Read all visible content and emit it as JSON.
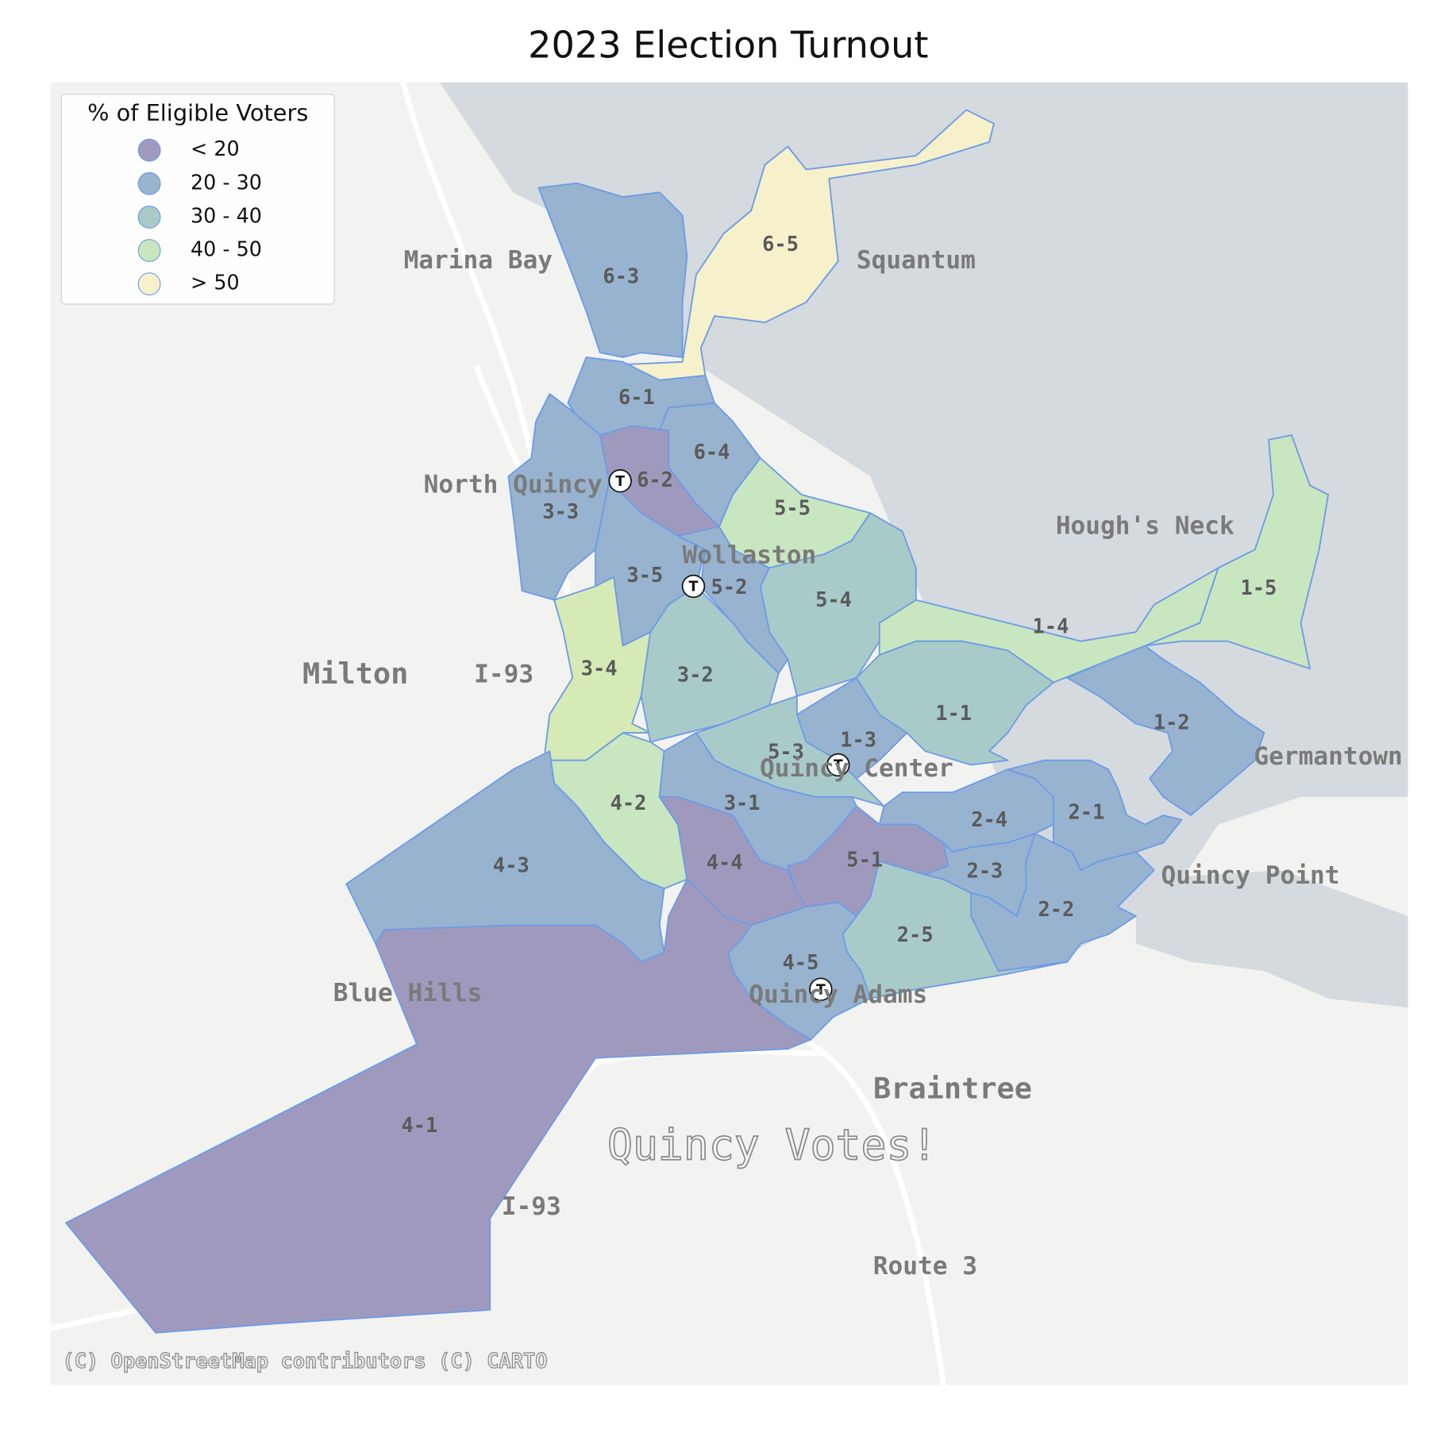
{
  "title": "2023 Election Turnout",
  "legend": {
    "title": "% of Eligible Voters",
    "entries": [
      {
        "label": "< 20",
        "color": "#9f9abd"
      },
      {
        "label": "20 - 30",
        "color": "#97b3cf"
      },
      {
        "label": "30 - 40",
        "color": "#a8cbca"
      },
      {
        "label": "40 - 50",
        "color": "#c8e6bf"
      },
      {
        "label": "> 50",
        "color": "#f6f1cb"
      }
    ]
  },
  "precincts": [
    {
      "label": "6-5",
      "color": "#f6f1cb"
    },
    {
      "label": "6-3",
      "color": "#97b3cf"
    },
    {
      "label": "6-1",
      "color": "#97b3cf"
    },
    {
      "label": "6-4",
      "color": "#97b3cf"
    },
    {
      "label": "6-2",
      "color": "#9f9abd"
    },
    {
      "label": "3-3",
      "color": "#97b3cf"
    },
    {
      "label": "5-5",
      "color": "#c8e6bf"
    },
    {
      "label": "5-4",
      "color": "#a8cbca"
    },
    {
      "label": "3-5",
      "color": "#97b3cf"
    },
    {
      "label": "5-2",
      "color": "#97b3cf"
    },
    {
      "label": "3-4",
      "color": "#d6eab6"
    },
    {
      "label": "3-2",
      "color": "#a8cbca"
    },
    {
      "label": "1-4",
      "color": "#c8e6bf"
    },
    {
      "label": "1-5",
      "color": "#c8e6bf"
    },
    {
      "label": "1-1",
      "color": "#a8cbca"
    },
    {
      "label": "1-2",
      "color": "#97b3cf"
    },
    {
      "label": "1-3",
      "color": "#97b3cf"
    },
    {
      "label": "5-3",
      "color": "#a8cbca"
    },
    {
      "label": "4-2",
      "color": "#c8e6bf"
    },
    {
      "label": "3-1",
      "color": "#97b3cf"
    },
    {
      "label": "4-4",
      "color": "#9f9abd"
    },
    {
      "label": "5-1",
      "color": "#9f9abd"
    },
    {
      "label": "2-4",
      "color": "#97b3cf"
    },
    {
      "label": "2-1",
      "color": "#97b3cf"
    },
    {
      "label": "2-3",
      "color": "#97b3cf"
    },
    {
      "label": "2-2",
      "color": "#97b3cf"
    },
    {
      "label": "2-5",
      "color": "#a8cbca"
    },
    {
      "label": "4-5",
      "color": "#97b3cf"
    },
    {
      "label": "4-3",
      "color": "#97b3cf"
    },
    {
      "label": "4-1",
      "color": "#9f9abd"
    }
  ],
  "places": [
    "Marina Bay",
    "Squantum",
    "Hough's Neck",
    "Milton",
    "I-93",
    "Germantown",
    "Quincy Point",
    "Blue Hills",
    "Braintree",
    "I-93",
    "Route 3"
  ],
  "stations": [
    {
      "name": "North Quincy",
      "symbol": "T"
    },
    {
      "name": "Wollaston",
      "symbol": "T"
    },
    {
      "name": "Quincy Center",
      "symbol": "T"
    },
    {
      "name": "Quincy Adams",
      "symbol": "T"
    }
  ],
  "watermark": "Quincy Votes!",
  "attribution": "(C) OpenStreetMap contributors (C) CARTO"
}
